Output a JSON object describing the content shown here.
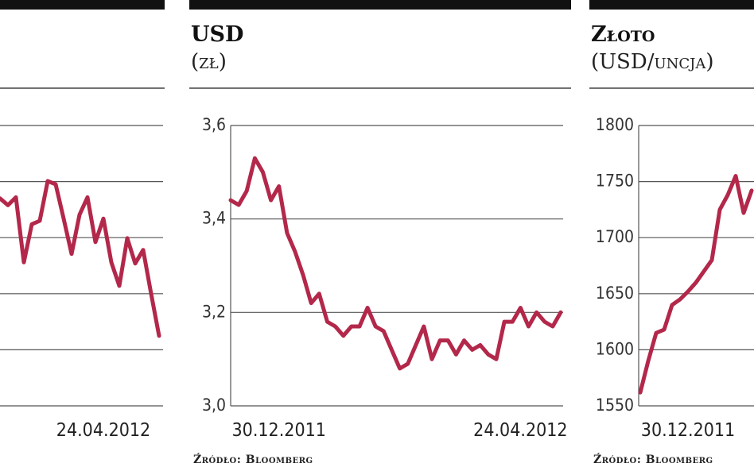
{
  "chart_data": [
    {
      "type": "line",
      "ylim": [
        0,
        5
      ],
      "yticks": [
        0,
        1,
        2,
        3,
        4,
        5
      ],
      "grid": true,
      "tick_labels": false,
      "categories": [
        null,
        null,
        null,
        null,
        null,
        null,
        null,
        null,
        null,
        null,
        null,
        null,
        null,
        "24.04.2012",
        null,
        null,
        null,
        null,
        null,
        null,
        null
      ],
      "series": [
        {
          "color": "#b3284a",
          "values": [
            3.7,
            3.58,
            3.72,
            2.56,
            3.24,
            3.3,
            4.01,
            3.95,
            3.34,
            2.71,
            3.41,
            3.72,
            2.92,
            3.34,
            2.56,
            2.14,
            2.99,
            2.54,
            2.78,
            2.0,
            1.25
          ]
        }
      ]
    },
    {
      "type": "line",
      "title": "USD",
      "subtitle": "(zł)",
      "source": "Źródło: Bloomberg",
      "ylim": [
        3.0,
        3.6
      ],
      "yticks": [
        {
          "value": 3.0,
          "label": "3,0"
        },
        {
          "value": 3.2,
          "label": "3,2"
        },
        {
          "value": 3.4,
          "label": "3,4"
        },
        {
          "value": 3.6,
          "label": "3,6"
        }
      ],
      "grid": true,
      "tick_labels": true,
      "categories": [
        null,
        null,
        null,
        null,
        null,
        null,
        "30.12.2011",
        null,
        null,
        null,
        null,
        null,
        null,
        null,
        null,
        null,
        null,
        null,
        null,
        null,
        null,
        null,
        null,
        null,
        null,
        null,
        null,
        null,
        null,
        null,
        null,
        null,
        null,
        null,
        null,
        null,
        "24.04.2012",
        null,
        null,
        null,
        null,
        null
      ],
      "series": [
        {
          "color": "#b3284a",
          "values": [
            3.44,
            3.43,
            3.46,
            3.53,
            3.5,
            3.44,
            3.47,
            3.37,
            3.33,
            3.28,
            3.22,
            3.24,
            3.18,
            3.17,
            3.15,
            3.17,
            3.17,
            3.21,
            3.17,
            3.16,
            3.12,
            3.08,
            3.09,
            3.13,
            3.17,
            3.1,
            3.14,
            3.14,
            3.11,
            3.14,
            3.12,
            3.13,
            3.11,
            3.1,
            3.18,
            3.18,
            3.21,
            3.17,
            3.2,
            3.18,
            3.17,
            3.2
          ]
        }
      ]
    },
    {
      "type": "line",
      "title": "Złoto",
      "subtitle": "(USD/uncja)",
      "source": "Źródło: Bloomberg",
      "ylim": [
        1550,
        1800
      ],
      "yticks": [
        1550,
        1600,
        1650,
        1700,
        1750,
        1800
      ],
      "grid": true,
      "tick_labels": true,
      "categories": [
        null,
        null,
        null,
        null,
        null,
        null,
        "30.12.2011",
        null,
        null,
        null,
        null,
        null,
        null,
        null,
        null
      ],
      "series": [
        {
          "color": "#b3284a",
          "values": [
            1562,
            1590,
            1615,
            1618,
            1640,
            1645,
            1652,
            1660,
            1670,
            1680,
            1725,
            1738,
            1755,
            1722,
            1742
          ]
        }
      ]
    }
  ]
}
